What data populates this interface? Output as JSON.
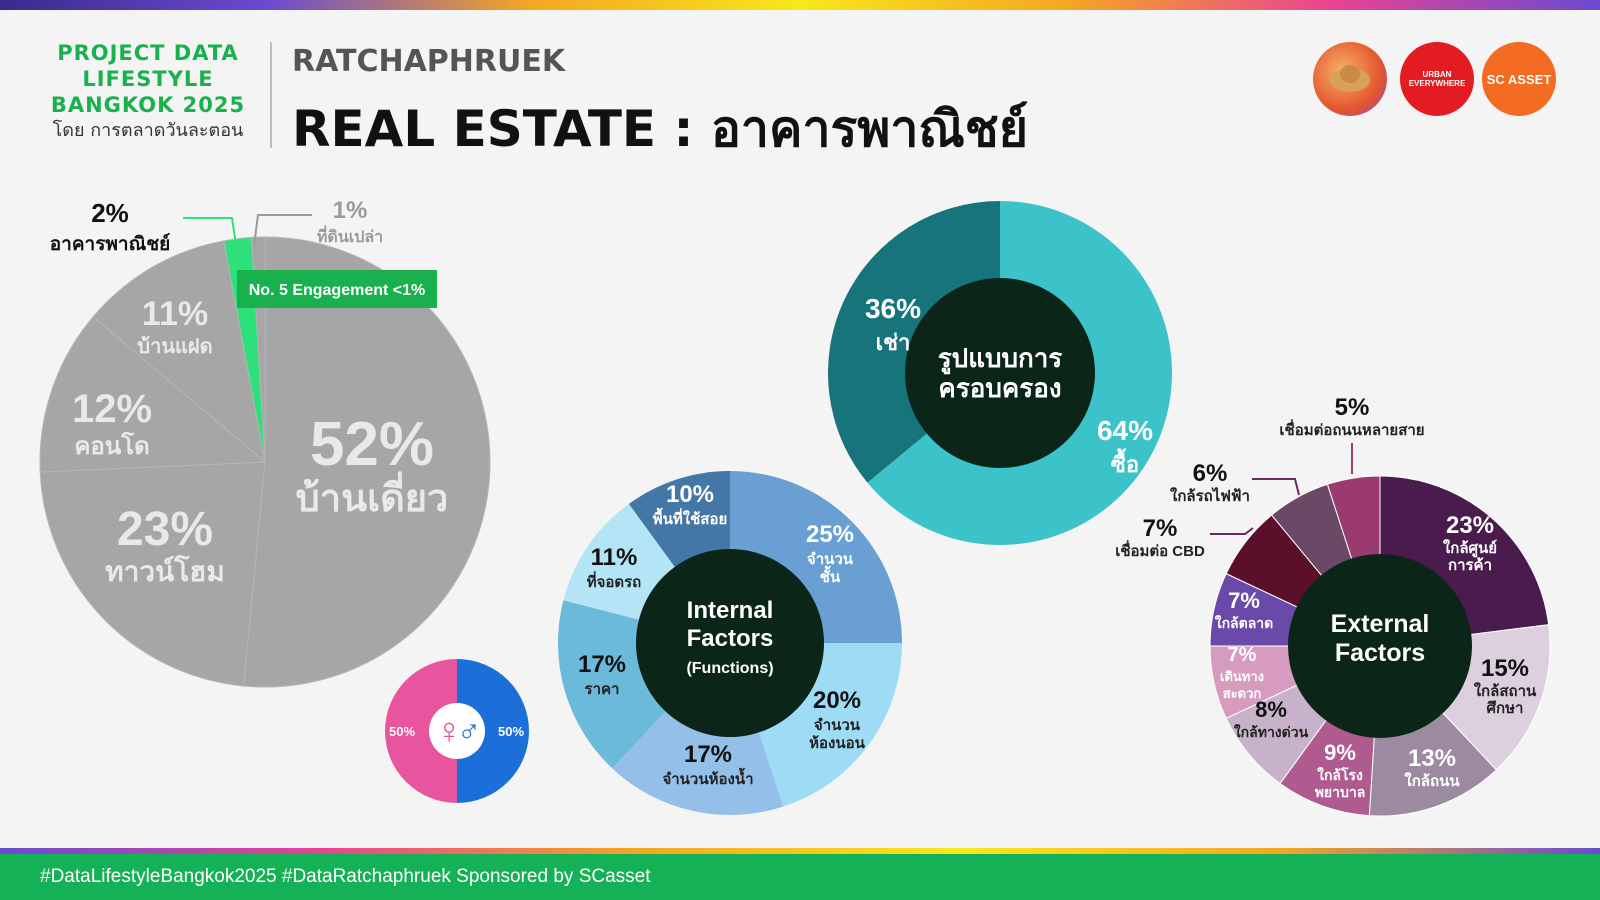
{
  "header": {
    "brand_line1": "PROJECT DATA",
    "brand_line2": "LIFESTYLE",
    "brand_line3": "BANGKOK 2025",
    "brand_sub": "โดย การตลาดวันละตอน",
    "location": "RATCHAPHRUEK",
    "title": "REAL ESTATE : อาคารพาณิชย์",
    "logos": [
      "URBAN EVERYWHERE",
      "SC ASSET"
    ]
  },
  "footer": {
    "text": "#DataLifestyleBangkok2025 #DataRatchaphruek Sponsored by SCasset"
  },
  "colors": {
    "brand_green": "#19b14d",
    "footer_green": "#15b157"
  },
  "chart_data": [
    {
      "type": "pie",
      "id": "property_type",
      "highlight_badge": "No. 5 Engagement <1%",
      "slices": [
        {
          "value": 52,
          "label": "52%",
          "name": "บ้านเดี่ยว",
          "color": "#a6a6a6"
        },
        {
          "value": 23,
          "label": "23%",
          "name": "ทาวน์โฮม",
          "color": "#a6a6a6"
        },
        {
          "value": 12,
          "label": "12%",
          "name": "คอนโด",
          "color": "#a6a6a6"
        },
        {
          "value": 11,
          "label": "11%",
          "name": "บ้านแฝด",
          "color": "#a6a6a6"
        },
        {
          "value": 2,
          "label": "2%",
          "name": "อาคารพาณิชย์",
          "color": "#2ee07a"
        },
        {
          "value": 1,
          "label": "1%",
          "name": "ที่ดินเปล่า",
          "color": "#a6a6a6"
        }
      ]
    },
    {
      "type": "pie",
      "id": "gender",
      "slices": [
        {
          "value": 50,
          "label": "50%",
          "name": "female",
          "color": "#e8559f"
        },
        {
          "value": 50,
          "label": "50%",
          "name": "male",
          "color": "#1c6fd9"
        }
      ]
    },
    {
      "type": "pie",
      "id": "ownership",
      "center_label": [
        "รูปแบบการ",
        "ครอบครอง"
      ],
      "slices": [
        {
          "value": 64,
          "label": "64%",
          "name": "ซื้อ",
          "color": "#3cc3c9"
        },
        {
          "value": 36,
          "label": "36%",
          "name": "เช่า",
          "color": "#17747a"
        }
      ]
    },
    {
      "type": "pie",
      "id": "internal_factors",
      "center_label": [
        "Internal",
        "Factors"
      ],
      "center_sub": "(Functions)",
      "slices": [
        {
          "value": 25,
          "label": "25%",
          "name": [
            "จำนวน",
            "ชั้น"
          ],
          "color": "#6a9fd4"
        },
        {
          "value": 20,
          "label": "20%",
          "name": [
            "จำนวน",
            "ห้องนอน"
          ],
          "color": "#9edbf5"
        },
        {
          "value": 17,
          "label": "17%",
          "name": [
            "จำนวนห้องน้ำ"
          ],
          "color": "#93bfe8"
        },
        {
          "value": 17,
          "label": "17%",
          "name": [
            "ราคา"
          ],
          "color": "#6cbad9"
        },
        {
          "value": 11,
          "label": "11%",
          "name": [
            "ที่จอดรถ"
          ],
          "color": "#b3e5f7"
        },
        {
          "value": 10,
          "label": "10%",
          "name": [
            "พื้นที่ใช้สอย"
          ],
          "color": "#4477a6"
        }
      ]
    },
    {
      "type": "pie",
      "id": "external_factors",
      "center_label": [
        "External",
        "Factors"
      ],
      "slices": [
        {
          "value": 23,
          "label": "23%",
          "name": [
            "ใกล้ศูนย์",
            "การค้า"
          ],
          "color": "#4a1c4e"
        },
        {
          "value": 15,
          "label": "15%",
          "name": [
            "ใกล้สถาน",
            "ศึกษา"
          ],
          "color": "#ddd0de"
        },
        {
          "value": 13,
          "label": "13%",
          "name": [
            "ใกล้ถนน"
          ],
          "color": "#9b8aa0"
        },
        {
          "value": 9,
          "label": "9%",
          "name": [
            "ใกล้โรง",
            "พยาบาล"
          ],
          "color": "#b05b8f"
        },
        {
          "value": 8,
          "label": "8%",
          "name": [
            "ใกล้ทางด่วน"
          ],
          "color": "#c6b3c9"
        },
        {
          "value": 7,
          "label": "7%",
          "name": [
            "เดินทาง",
            "สะดวก"
          ],
          "color": "#d69bbf"
        },
        {
          "value": 7,
          "label": "7%",
          "name": [
            "ใกล้ตลาด"
          ],
          "color": "#6a4aa8"
        },
        {
          "value": 7,
          "label": "7%",
          "name": [
            "เชื่อมต่อ CBD"
          ],
          "color": "#5c0f2b"
        },
        {
          "value": 6,
          "label": "6%",
          "name": [
            "ใกล้รถไฟฟ้า"
          ],
          "color": "#6b4966"
        },
        {
          "value": 5,
          "label": "5%",
          "name": [
            "เชื่อมต่อถนนหลายสาย"
          ],
          "color": "#9b3a6e"
        }
      ]
    }
  ]
}
